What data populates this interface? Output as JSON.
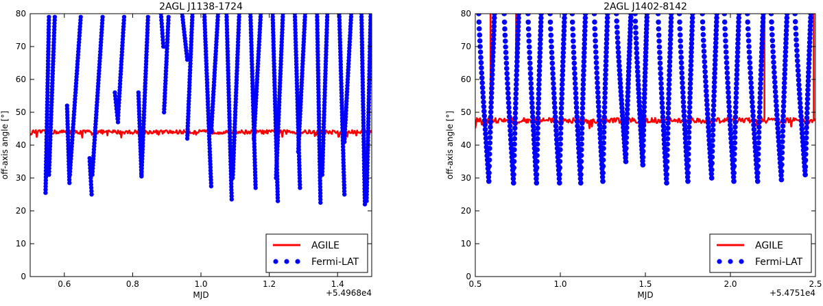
{
  "chart_data": [
    {
      "type": "scatter",
      "title": "2AGL J1138-1724",
      "xlabel": "MJD",
      "ylabel": "off-axis angle [°]",
      "x_offset_label": "+5.4968e4",
      "xlim": [
        0.5,
        1.5
      ],
      "ylim": [
        0,
        80
      ],
      "xticks": [
        0.6,
        0.8,
        1.0,
        1.2,
        1.4
      ],
      "xtick_labels": [
        "0.6",
        "0.8",
        "1.0",
        "1.2",
        "1.4"
      ],
      "yticks": [
        0,
        10,
        20,
        30,
        40,
        50,
        60,
        70,
        80
      ],
      "ytick_labels": [
        "0",
        "10",
        "20",
        "30",
        "40",
        "50",
        "60",
        "70",
        "80"
      ],
      "legend": {
        "position": "lower-right",
        "entries": [
          "AGILE",
          "Fermi-LAT"
        ]
      },
      "series": [
        {
          "name": "AGILE",
          "style": "line",
          "color": "#ff0000",
          "baseline": 44.0,
          "jitter": 0.6
        },
        {
          "name": "Fermi-LAT",
          "style": "points",
          "color": "#0000ff",
          "passes": [
            [
              0.545,
              0.555,
              25.5,
              79
            ],
            [
              0.555,
              0.572,
              31,
              79
            ],
            [
              0.615,
              0.608,
              28.5,
              52
            ],
            [
              0.616,
              0.648,
              31,
              79
            ],
            [
              0.68,
              0.674,
              25,
              36
            ],
            [
              0.682,
              0.712,
              31,
              79
            ],
            [
              0.757,
              0.748,
              47,
              56
            ],
            [
              0.757,
              0.775,
              48,
              79
            ],
            [
              0.826,
              0.817,
              30.5,
              56
            ],
            [
              0.826,
              0.845,
              31,
              79
            ],
            [
              0.89,
              0.883,
              70,
              80
            ],
            [
              0.892,
              0.905,
              50,
              79
            ],
            [
              0.96,
              0.945,
              66,
              80
            ],
            [
              0.96,
              0.975,
              42,
              80
            ],
            [
              1.03,
              1.01,
              27.5,
              80
            ],
            [
              1.03,
              1.05,
              44,
              80
            ],
            [
              1.09,
              1.075,
              23.5,
              80
            ],
            [
              1.093,
              1.112,
              30,
              80
            ],
            [
              1.16,
              1.145,
              27,
              80
            ],
            [
              1.155,
              1.175,
              42,
              80
            ],
            [
              1.225,
              1.21,
              23,
              80
            ],
            [
              1.22,
              1.24,
              30,
              80
            ],
            [
              1.29,
              1.275,
              27,
              80
            ],
            [
              1.285,
              1.305,
              38,
              80
            ],
            [
              1.35,
              1.34,
              22.5,
              80
            ],
            [
              1.355,
              1.37,
              31,
              80
            ],
            [
              1.42,
              1.405,
              25,
              80
            ],
            [
              1.42,
              1.44,
              41,
              80
            ],
            [
              1.48,
              1.47,
              22,
              80
            ],
            [
              1.485,
              1.497,
              23,
              80
            ]
          ]
        }
      ]
    },
    {
      "type": "scatter",
      "title": "2AGL J1402-8142",
      "xlabel": "MJD",
      "ylabel": "off-axis angle [°]",
      "x_offset_label": "+5.4751e4",
      "xlim": [
        0.5,
        2.5
      ],
      "ylim": [
        0,
        80
      ],
      "xticks": [
        0.5,
        1.0,
        1.5,
        2.0,
        2.5
      ],
      "xtick_labels": [
        "0.5",
        "1.0",
        "1.5",
        "2.0",
        "2.5"
      ],
      "yticks": [
        0,
        10,
        20,
        30,
        40,
        50,
        60,
        70,
        80
      ],
      "ytick_labels": [
        "0",
        "10",
        "20",
        "30",
        "40",
        "50",
        "60",
        "70",
        "80"
      ],
      "legend": {
        "position": "lower-right",
        "entries": [
          "AGILE",
          "Fermi-LAT"
        ]
      },
      "series": [
        {
          "name": "AGILE",
          "style": "line",
          "color": "#ff0000",
          "baseline": 47.5,
          "jitter": 0.8,
          "spikes": [
            0.59,
            0.74,
            2.2,
            2.49
          ]
        },
        {
          "name": "Fermi-LAT",
          "style": "points",
          "color": "#0000ff",
          "valleys": [
            [
              0.58,
              0.52,
              29,
              80
            ],
            [
              0.725,
              0.67,
              28.5,
              80
            ],
            [
              0.86,
              0.81,
              28.5,
              80
            ],
            [
              0.995,
              0.94,
              28.5,
              80
            ],
            [
              1.12,
              1.07,
              28.5,
              80
            ],
            [
              1.25,
              1.2,
              29,
              80
            ],
            [
              1.385,
              1.33,
              35,
              80
            ],
            [
              1.485,
              1.44,
              34,
              80
            ],
            [
              1.625,
              1.575,
              28.5,
              80
            ],
            [
              1.75,
              1.7,
              29,
              80
            ],
            [
              1.89,
              1.835,
              30,
              80
            ],
            [
              2.02,
              1.965,
              29,
              80
            ],
            [
              2.16,
              2.1,
              29,
              80
            ],
            [
              2.3,
              2.24,
              29.5,
              80
            ],
            [
              2.44,
              2.38,
              31,
              80
            ]
          ]
        }
      ]
    }
  ]
}
